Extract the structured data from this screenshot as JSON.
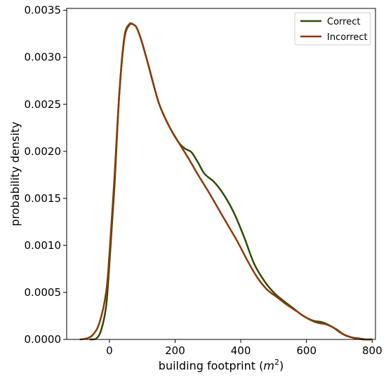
{
  "chart_data": {
    "type": "line",
    "xlabel": "building footprint (",
    "xlabel_unit": "m",
    "xlabel_sup": "2",
    "xlabel_close": ")",
    "ylabel": "probability density",
    "xlim": [
      -130,
      810
    ],
    "ylim": [
      0,
      0.00352
    ],
    "xticks": [
      0,
      200,
      400,
      600,
      800
    ],
    "xtick_labels": [
      "0",
      "200",
      "400",
      "600",
      "800"
    ],
    "yticks": [
      0,
      0.0005,
      0.001,
      0.0015,
      0.002,
      0.0025,
      0.003,
      0.0035
    ],
    "ytick_labels": [
      "0.0000",
      "0.0005",
      "0.0010",
      "0.0015",
      "0.0020",
      "0.0025",
      "0.0030",
      "0.0035"
    ],
    "grid": false,
    "legend_position": "top-right",
    "series": [
      {
        "name": "Correct",
        "color": "#2d4d00",
        "x": [
          -60,
          -40,
          -25,
          -10,
          0,
          15,
          30,
          45,
          60,
          75,
          85,
          100,
          120,
          150,
          180,
          210,
          230,
          250,
          270,
          290,
          320,
          350,
          380,
          410,
          440,
          470,
          500,
          530,
          560,
          590,
          620,
          650,
          680,
          700,
          720,
          740,
          760,
          780,
          800
        ],
        "y": [
          0,
          1e-05,
          0.0001,
          0.00035,
          0.0008,
          0.0016,
          0.0026,
          0.0032,
          0.00335,
          0.003345,
          0.0033,
          0.00315,
          0.0029,
          0.00252,
          0.00228,
          0.0021,
          0.00203,
          0.00199,
          0.00188,
          0.00176,
          0.00167,
          0.00153,
          0.00134,
          0.00109,
          0.00081,
          0.00063,
          0.0005,
          0.00041,
          0.00033,
          0.00025,
          0.0002,
          0.00018,
          0.00013,
          8e-05,
          4e-05,
          2e-05,
          1e-05,
          0,
          0
        ]
      },
      {
        "name": "Incorrect",
        "color": "#8b3a0a",
        "x": [
          -90,
          -70,
          -50,
          -30,
          -10,
          0,
          15,
          30,
          45,
          60,
          75,
          85,
          100,
          120,
          150,
          180,
          210,
          240,
          270,
          300,
          330,
          360,
          390,
          420,
          450,
          480,
          510,
          540,
          570,
          600,
          630,
          660,
          690,
          710,
          730,
          750,
          770,
          790,
          800
        ],
        "y": [
          0,
          1e-05,
          5e-05,
          0.00018,
          0.0005,
          0.0009,
          0.0017,
          0.0026,
          0.00318,
          0.00334,
          0.003345,
          0.0033,
          0.00315,
          0.0029,
          0.00252,
          0.00228,
          0.0021,
          0.00193,
          0.00175,
          0.00158,
          0.0014,
          0.00122,
          0.00104,
          0.00084,
          0.00066,
          0.00053,
          0.00045,
          0.00037,
          0.0003,
          0.00023,
          0.00018,
          0.00016,
          0.00011,
          6e-05,
          3e-05,
          1e-05,
          0,
          0,
          0
        ]
      }
    ]
  }
}
